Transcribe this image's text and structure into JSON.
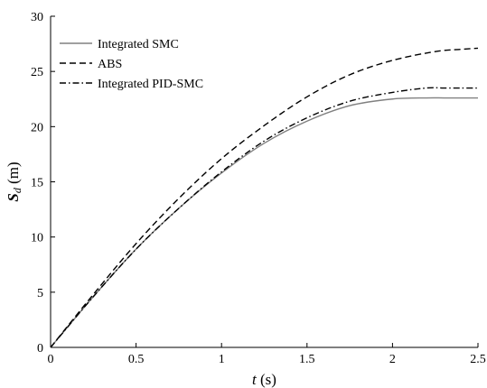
{
  "chart_data": {
    "type": "line",
    "xlabel": {
      "var": "t",
      "unit": "(s)"
    },
    "ylabel": {
      "var": "S",
      "sub": "d",
      "unit": "(m)"
    },
    "xlim": [
      0,
      2.5
    ],
    "ylim": [
      0,
      30
    ],
    "xticks": [
      0,
      0.5,
      1,
      1.5,
      2,
      2.5
    ],
    "xtick_labels": [
      "0",
      "0.5",
      "1",
      "1.5",
      "2",
      "2.5"
    ],
    "yticks": [
      0,
      5,
      10,
      15,
      20,
      25,
      30
    ],
    "ytick_labels": [
      "0",
      "5",
      "10",
      "15",
      "20",
      "25",
      "30"
    ],
    "grid": false,
    "legend_position": "top-left",
    "series": [
      {
        "name": "Integrated SMC",
        "style": "solid",
        "color": "#808080",
        "x": [
          0,
          0.25,
          0.5,
          0.75,
          1.0,
          1.25,
          1.5,
          1.75,
          2.0,
          2.2,
          2.3,
          2.4,
          2.5
        ],
        "y": [
          0,
          4.6,
          8.9,
          12.6,
          15.8,
          18.5,
          20.5,
          21.9,
          22.5,
          22.6,
          22.6,
          22.6,
          22.6
        ]
      },
      {
        "name": "ABS",
        "style": "dashed",
        "color": "#000000",
        "x": [
          0,
          0.25,
          0.5,
          0.75,
          1.0,
          1.25,
          1.5,
          1.75,
          2.0,
          2.25,
          2.4,
          2.5
        ],
        "y": [
          0,
          4.8,
          9.4,
          13.5,
          17.1,
          20.1,
          22.7,
          24.7,
          26.0,
          26.8,
          27.0,
          27.1
        ]
      },
      {
        "name": "Integrated PID-SMC",
        "style": "dashdot",
        "color": "#000000",
        "x": [
          0,
          0.25,
          0.5,
          0.75,
          1.0,
          1.25,
          1.5,
          1.75,
          2.0,
          2.2,
          2.3,
          2.4,
          2.5
        ],
        "y": [
          0,
          4.6,
          8.9,
          12.6,
          15.9,
          18.7,
          20.8,
          22.3,
          23.1,
          23.5,
          23.5,
          23.5,
          23.5
        ]
      }
    ]
  }
}
